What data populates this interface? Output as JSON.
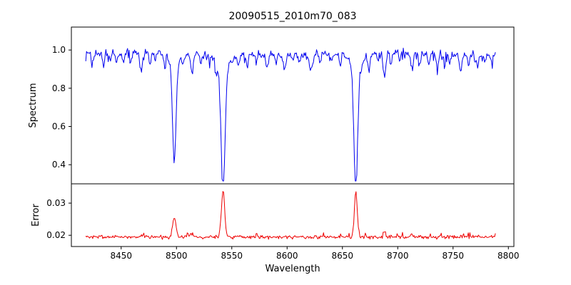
{
  "chart_data": {
    "type": "line",
    "title": "20090515_2010m70_083",
    "xlabel": "Wavelength",
    "legend": "none",
    "grid": false,
    "xlim": [
      8405,
      8805
    ],
    "x_ticks": [
      8450,
      8500,
      8550,
      8600,
      8650,
      8700,
      8750,
      8800
    ],
    "wavelength_range": [
      8418,
      8789
    ],
    "panels": [
      {
        "name": "spectrum",
        "ylabel": "Spectrum",
        "ylim": [
          0.3,
          1.12
        ],
        "yticks": [
          1.0,
          0.8,
          0.6,
          0.4
        ],
        "ytick_labels": [
          "1.0",
          "0.8",
          "0.6",
          "0.4"
        ],
        "color": "#0000ee"
      },
      {
        "name": "error",
        "ylabel": "Error",
        "ylim": [
          0.0165,
          0.036
        ],
        "yticks": [
          0.03,
          0.02
        ],
        "ytick_labels": [
          "0.03",
          "0.02"
        ],
        "color": "#ee0000"
      }
    ],
    "spectrum": {
      "continuum": 0.98,
      "noise_sigma": 0.011,
      "seed": 42,
      "strong_absorption_lines": [
        {
          "center": 8498.0,
          "depth": 0.5,
          "width": 1.5,
          "wing": 4.5
        },
        {
          "center": 8542.1,
          "depth": 0.64,
          "width": 1.7,
          "wing": 5.5
        },
        {
          "center": 8662.1,
          "depth": 0.63,
          "width": 1.6,
          "wing": 5.0
        }
      ],
      "weak_lines": [
        {
          "c": 8424,
          "d": 0.05,
          "w": 1.0
        },
        {
          "c": 8434,
          "d": 0.07,
          "w": 1.0
        },
        {
          "c": 8440,
          "d": 0.04,
          "w": 0.9
        },
        {
          "c": 8446,
          "d": 0.06,
          "w": 1.0
        },
        {
          "c": 8452,
          "d": 0.05,
          "w": 0.9
        },
        {
          "c": 8459,
          "d": 0.04,
          "w": 0.9
        },
        {
          "c": 8468,
          "d": 0.1,
          "w": 1.1
        },
        {
          "c": 8476,
          "d": 0.06,
          "w": 1.0
        },
        {
          "c": 8481,
          "d": 0.04,
          "w": 0.9
        },
        {
          "c": 8489,
          "d": 0.05,
          "w": 0.9
        },
        {
          "c": 8506,
          "d": 0.04,
          "w": 0.9
        },
        {
          "c": 8514,
          "d": 0.11,
          "w": 1.1
        },
        {
          "c": 8522,
          "d": 0.05,
          "w": 0.9
        },
        {
          "c": 8530,
          "d": 0.04,
          "w": 0.9
        },
        {
          "c": 8536,
          "d": 0.05,
          "w": 0.9
        },
        {
          "c": 8556,
          "d": 0.05,
          "w": 0.9
        },
        {
          "c": 8564,
          "d": 0.06,
          "w": 1.0
        },
        {
          "c": 8572,
          "d": 0.04,
          "w": 0.9
        },
        {
          "c": 8582,
          "d": 0.07,
          "w": 1.0
        },
        {
          "c": 8590,
          "d": 0.04,
          "w": 0.9
        },
        {
          "c": 8598,
          "d": 0.07,
          "w": 1.0
        },
        {
          "c": 8605,
          "d": 0.04,
          "w": 0.9
        },
        {
          "c": 8611,
          "d": 0.05,
          "w": 0.9
        },
        {
          "c": 8621,
          "d": 0.09,
          "w": 1.1
        },
        {
          "c": 8630,
          "d": 0.04,
          "w": 0.9
        },
        {
          "c": 8640,
          "d": 0.05,
          "w": 0.9
        },
        {
          "c": 8648,
          "d": 0.06,
          "w": 1.0
        },
        {
          "c": 8674,
          "d": 0.1,
          "w": 1.1
        },
        {
          "c": 8682,
          "d": 0.05,
          "w": 0.9
        },
        {
          "c": 8688,
          "d": 0.13,
          "w": 1.2
        },
        {
          "c": 8694,
          "d": 0.05,
          "w": 0.9
        },
        {
          "c": 8702,
          "d": 0.04,
          "w": 0.9
        },
        {
          "c": 8713,
          "d": 0.1,
          "w": 1.1
        },
        {
          "c": 8720,
          "d": 0.05,
          "w": 0.9
        },
        {
          "c": 8728,
          "d": 0.06,
          "w": 1.0
        },
        {
          "c": 8736,
          "d": 0.08,
          "w": 1.0
        },
        {
          "c": 8742,
          "d": 0.04,
          "w": 0.9
        },
        {
          "c": 8747,
          "d": 0.05,
          "w": 0.9
        },
        {
          "c": 8757,
          "d": 0.09,
          "w": 1.1
        },
        {
          "c": 8764,
          "d": 0.05,
          "w": 0.9
        },
        {
          "c": 8772,
          "d": 0.06,
          "w": 1.0
        },
        {
          "c": 8779,
          "d": 0.04,
          "w": 0.9
        },
        {
          "c": 8785,
          "d": 0.05,
          "w": 0.9
        }
      ]
    },
    "error": {
      "baseline": 0.0195,
      "noise_sigma": 0.00032,
      "seed": 7,
      "peaks": [
        {
          "center": 8498.0,
          "height": 0.0058,
          "width": 1.6
        },
        {
          "center": 8542.1,
          "height": 0.0145,
          "width": 1.5
        },
        {
          "center": 8662.1,
          "height": 0.014,
          "width": 1.3
        },
        {
          "center": 8514.0,
          "height": 0.0013,
          "width": 1.2
        },
        {
          "center": 8468.0,
          "height": 0.0008,
          "width": 1.0
        },
        {
          "center": 8688.0,
          "height": 0.002,
          "width": 1.0
        },
        {
          "center": 8713.0,
          "height": 0.0008,
          "width": 1.0
        }
      ]
    }
  }
}
